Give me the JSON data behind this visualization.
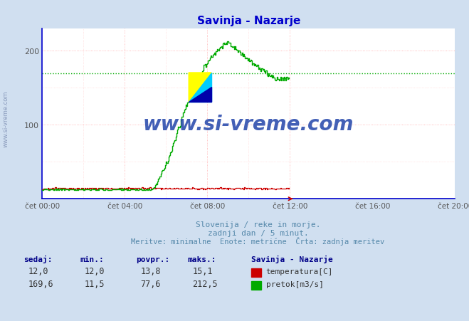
{
  "title": "Savinja - Nazarje",
  "title_color": "#0000cc",
  "bg_color": "#d0dff0",
  "plot_bg_color": "#ffffff",
  "xlabel_ticks": [
    "čet 00:00",
    "čet 04:00",
    "čet 08:00",
    "čet 12:00",
    "čet 16:00",
    "čet 20:00"
  ],
  "total_points": 288,
  "ylim_max": 230,
  "yticks": [
    100,
    200
  ],
  "grid_color_major": "#ffaaaa",
  "grid_color_minor": "#ffd0d0",
  "temp_color": "#cc0000",
  "flow_color": "#00aa00",
  "flow_last": 169.6,
  "flow_max": 212.5,
  "subtitle1": "Slovenija / reke in morje.",
  "subtitle2": "zadnji dan / 5 minut.",
  "subtitle3": "Meritve: minimalne  Enote: metrične  Črta: zadnja meritev",
  "subtitle_color": "#5588aa",
  "table_label_color": "#000088",
  "table_value_color": "#333333",
  "watermark": "www.si-vreme.com",
  "watermark_color": "#2244aa",
  "left_label": "www.si-vreme.com",
  "left_label_color": "#8899bb",
  "temp_last": 12.0,
  "temp_min": 12.0,
  "temp_avg": 13.8,
  "temp_max": 15.1,
  "flow_min": 11.5,
  "flow_avg": 77.6,
  "axis_color": "#0000cc",
  "axis_arrow_color": "#cc0000"
}
